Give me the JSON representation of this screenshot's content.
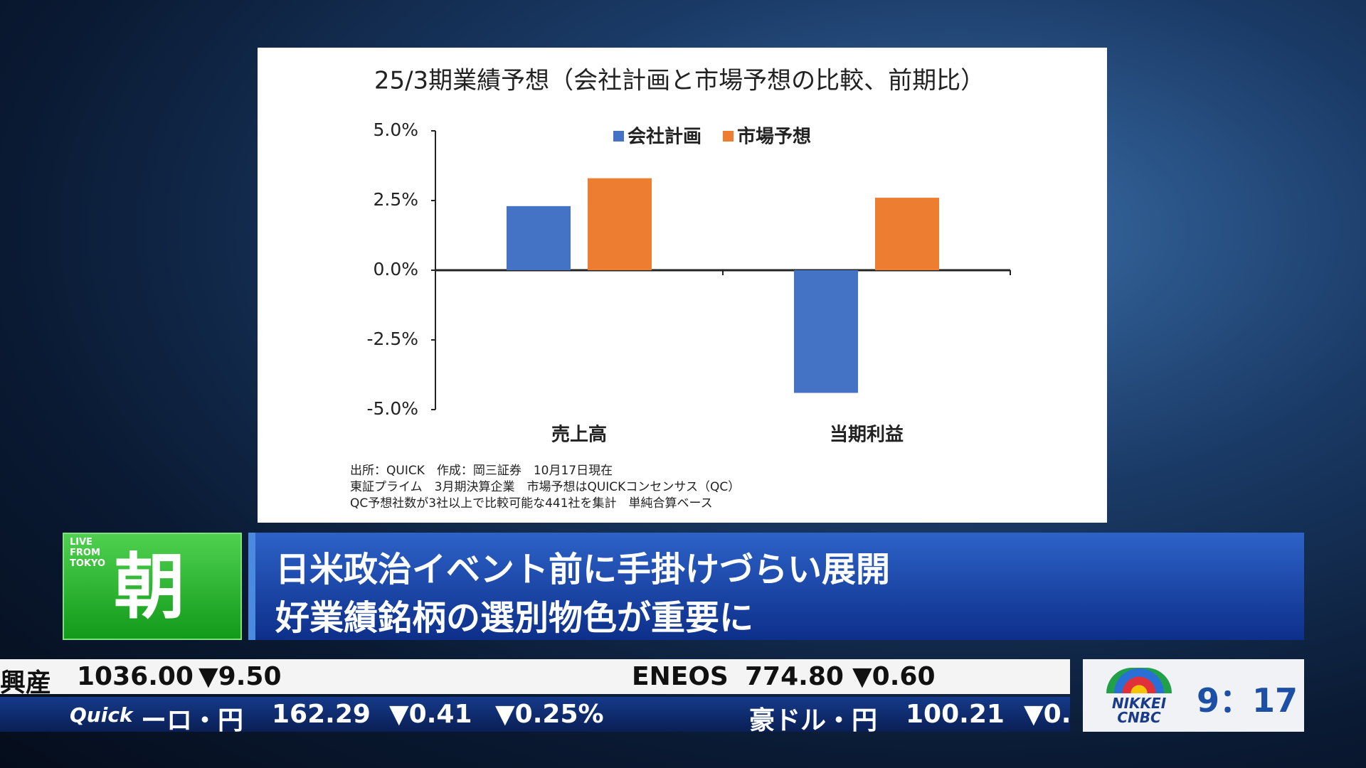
{
  "chart_data": {
    "type": "bar",
    "title": "25/3期業績予想（会社計画と市場予想の比較、前期比）",
    "categories": [
      "売上高",
      "当期利益"
    ],
    "series": [
      {
        "name": "会社計画",
        "color": "#4472c4",
        "values": [
          2.3,
          -4.4
        ]
      },
      {
        "name": "市場予想",
        "color": "#ed7d31",
        "values": [
          3.3,
          2.6
        ]
      }
    ],
    "ylim": [
      -5,
      5
    ],
    "yticks": [
      {
        "value": 5,
        "label": "5.0%"
      },
      {
        "value": 2.5,
        "label": "2.5%"
      },
      {
        "value": 0,
        "label": "0.0%"
      },
      {
        "value": -2.5,
        "label": "-2.5%"
      },
      {
        "value": -5,
        "label": "-5.0%"
      }
    ],
    "legend": "top",
    "notes": [
      "出所：QUICK　作成：岡三証券　10月17日現在",
      "東証プライム　3月期決算企業　市場予想はQUICKコンセンサス（QC）",
      "QC予想社数が3社以上で比較可能な441社を集計　単純合算ベース"
    ]
  },
  "program": {
    "badge": [
      "LIVE",
      "FROM",
      "TOKYO"
    ],
    "name": "朝"
  },
  "headline": [
    "日米政治イベント前に手掛けづらい展開",
    "好業績銘柄の選別物色が重要に"
  ],
  "ticker": {
    "row1": [
      "興産",
      "1036.00",
      "▼9.50",
      "ENEOS",
      "774.80",
      "▼0.60"
    ],
    "row2": [
      "Quick",
      "ーロ・円",
      "162.29",
      "▼0.41",
      "▼0.25%",
      "豪ドル・円",
      "100.21",
      "▼0."
    ]
  },
  "logo": [
    "NIKKEI",
    "CNBC"
  ],
  "clock": "9：17"
}
